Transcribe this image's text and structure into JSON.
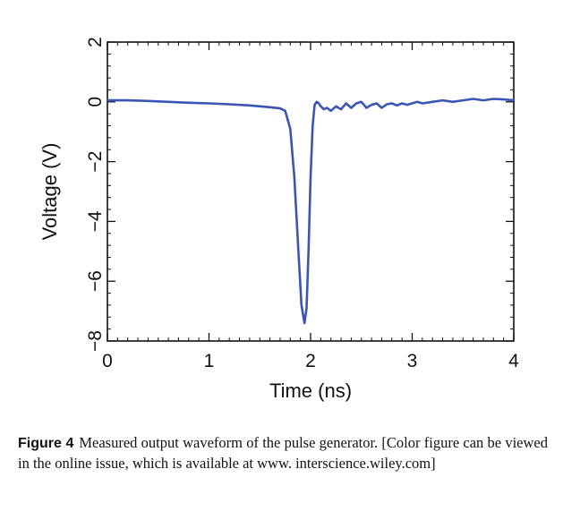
{
  "chart_data": {
    "type": "line",
    "title": "",
    "xlabel": "Time (ns)",
    "ylabel": "Voltage (V)",
    "xlim": [
      0,
      4
    ],
    "ylim": [
      -8,
      2
    ],
    "xticks": [
      0,
      1,
      2,
      3,
      4
    ],
    "yticks": [
      2,
      0,
      -2,
      -4,
      -6,
      -8
    ],
    "xtick_labels": [
      "0",
      "1",
      "2",
      "3",
      "4"
    ],
    "ytick_labels": [
      "2",
      "0",
      "−2",
      "−4",
      "−6",
      "−8"
    ],
    "grid": false,
    "legend": "none",
    "series_color": "#3a55b4",
    "series": [
      {
        "x": [
          0,
          0.2,
          0.4,
          0.6,
          0.8,
          1.0,
          1.2,
          1.4,
          1.6,
          1.7,
          1.75,
          1.8,
          1.84,
          1.88,
          1.91,
          1.94,
          1.96,
          1.98,
          2.0,
          2.02,
          2.04,
          2.06,
          2.08,
          2.1,
          2.13,
          2.16,
          2.2,
          2.25,
          2.3,
          2.35,
          2.4,
          2.45,
          2.5,
          2.55,
          2.6,
          2.65,
          2.7,
          2.75,
          2.8,
          2.85,
          2.9,
          2.95,
          3.0,
          3.05,
          3.1,
          3.2,
          3.3,
          3.4,
          3.5,
          3.6,
          3.7,
          3.8,
          3.9,
          4.0
        ],
        "y": [
          0.05,
          0.05,
          0.03,
          0.0,
          -0.03,
          -0.05,
          -0.08,
          -0.12,
          -0.18,
          -0.22,
          -0.3,
          -0.9,
          -2.5,
          -5.0,
          -6.8,
          -7.4,
          -6.9,
          -5.0,
          -2.5,
          -0.8,
          -0.1,
          0.0,
          -0.05,
          -0.15,
          -0.25,
          -0.2,
          -0.3,
          -0.15,
          -0.25,
          -0.05,
          -0.2,
          -0.05,
          0.0,
          -0.2,
          -0.1,
          -0.05,
          -0.2,
          -0.08,
          -0.05,
          -0.12,
          -0.05,
          -0.1,
          -0.05,
          0.0,
          -0.05,
          0.0,
          0.05,
          0.0,
          0.05,
          0.1,
          0.05,
          0.1,
          0.08,
          0.05
        ]
      }
    ]
  },
  "caption": {
    "label": "Figure 4",
    "text": "Measured output waveform of the pulse generator. [Color figure can be viewed in the online issue, which is available at www. interscience.wiley.com]"
  }
}
